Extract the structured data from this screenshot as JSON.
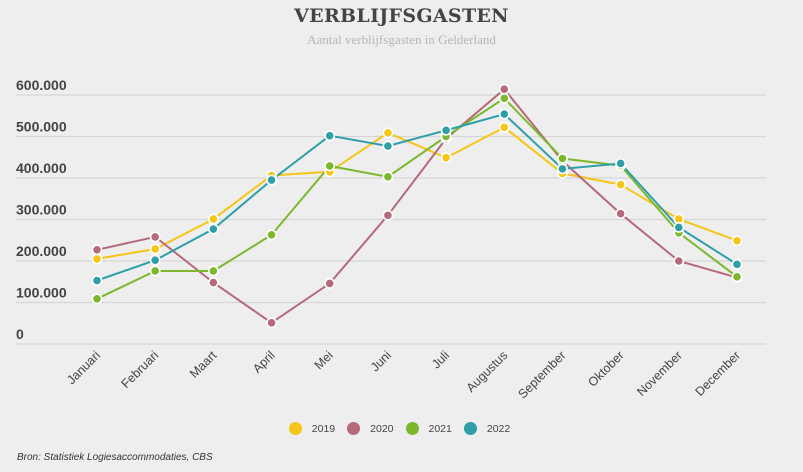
{
  "chart_data": {
    "type": "line",
    "title": "VERBLIJFSGASTEN",
    "subtitle": "Aantal verblijfsgasten in Gelderland",
    "xlabel": "",
    "ylabel": "",
    "categories": [
      "Januari",
      "Februari",
      "Maart",
      "April",
      "Mei",
      "Juni",
      "Juli",
      "Augustus",
      "September",
      "Oktober",
      "November",
      "December"
    ],
    "ylim": [
      0,
      600000
    ],
    "yticks": [
      0,
      100000,
      200000,
      300000,
      400000,
      500000,
      600000
    ],
    "ytick_labels": [
      "0",
      "100.000",
      "200.000",
      "300.000",
      "400.000",
      "500.000",
      "600.000"
    ],
    "grid": true,
    "legend_position": "bottom-center",
    "series": [
      {
        "name": "2019",
        "color": "#f5c518",
        "values": [
          205000,
          229000,
          301000,
          406000,
          415000,
          509000,
          449000,
          522000,
          411000,
          384000,
          301000,
          249000
        ]
      },
      {
        "name": "2020",
        "color": "#b5697a",
        "values": [
          227000,
          258000,
          148000,
          51000,
          146000,
          310000,
          495000,
          614000,
          441000,
          314000,
          200000,
          160000
        ]
      },
      {
        "name": "2021",
        "color": "#7bb82e",
        "values": [
          109000,
          176000,
          176000,
          263000,
          429000,
          403000,
          500000,
          592000,
          447000,
          430000,
          268000,
          162000
        ]
      },
      {
        "name": "2022",
        "color": "#2e9fa8",
        "values": [
          153000,
          202000,
          277000,
          395000,
          502000,
          477000,
          515000,
          554000,
          422000,
          435000,
          281000,
          192000
        ]
      }
    ],
    "source": "Bron: Statistiek Logiesaccommodaties, CBS"
  }
}
